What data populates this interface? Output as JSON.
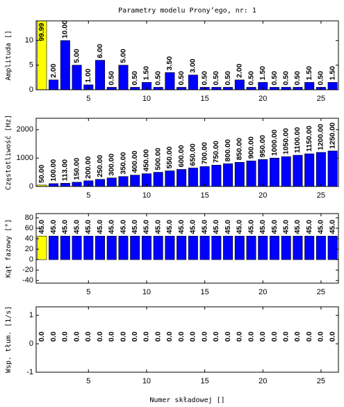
{
  "chart_data": [
    {
      "type": "bar",
      "title": "Parametry modelu Prony’ego, nr: 1",
      "ylabel": "Amplituda []",
      "x": [
        1,
        2,
        3,
        4,
        5,
        6,
        7,
        8,
        9,
        10,
        11,
        12,
        13,
        14,
        15,
        16,
        17,
        18,
        19,
        20,
        21,
        22,
        23,
        24,
        25,
        26
      ],
      "values": [
        99.99,
        2,
        10,
        5,
        1,
        6,
        0.5,
        5,
        0.5,
        1.5,
        0.5,
        3.5,
        0.5,
        3,
        0.5,
        0.5,
        0.5,
        2,
        0.5,
        1.5,
        0.5,
        0.5,
        0.5,
        1.5,
        0.5,
        1.5
      ],
      "value_labels": [
        "99.99",
        "2.00",
        "10.00",
        "5.00",
        "1.00",
        "6.00",
        "0.50",
        "5.00",
        "0.50",
        "1.50",
        "0.50",
        "3.50",
        "0.50",
        "3.00",
        "0.50",
        "0.50",
        "0.50",
        "2.00",
        "0.50",
        "1.50",
        "0.50",
        "0.50",
        "0.50",
        "1.50",
        "0.50",
        "1.50"
      ],
      "colors": [
        "#ffff00",
        "#0000ff",
        "#0000ff",
        "#0000ff",
        "#0000ff",
        "#0000ff",
        "#0000ff",
        "#0000ff",
        "#0000ff",
        "#0000ff",
        "#0000ff",
        "#0000ff",
        "#0000ff",
        "#0000ff",
        "#0000ff",
        "#0000ff",
        "#0000ff",
        "#0000ff",
        "#0000ff",
        "#0000ff",
        "#0000ff",
        "#0000ff",
        "#0000ff",
        "#0000ff",
        "#0000ff",
        "#0000ff"
      ],
      "xlim": [
        0.5,
        26.5
      ],
      "xticks": [
        5,
        10,
        15,
        20,
        25
      ],
      "ylim": [
        0,
        14
      ],
      "yticks": [
        0,
        5,
        10
      ]
    },
    {
      "type": "bar",
      "ylabel": "Częstotliwość [Hz]",
      "x": [
        1,
        2,
        3,
        4,
        5,
        6,
        7,
        8,
        9,
        10,
        11,
        12,
        13,
        14,
        15,
        16,
        17,
        18,
        19,
        20,
        21,
        22,
        23,
        24,
        25,
        26
      ],
      "values": [
        50,
        100,
        113,
        150,
        200,
        250,
        300,
        350,
        400,
        450,
        500,
        550,
        600,
        650,
        700,
        750,
        800,
        850,
        900,
        950,
        1000,
        1050,
        1100,
        1150,
        1200,
        1250
      ],
      "value_labels": [
        "50.00",
        "100.00",
        "113.00",
        "150.00",
        "200.00",
        "250.00",
        "300.00",
        "350.00",
        "400.00",
        "450.00",
        "500.00",
        "550.00",
        "600.00",
        "650.00",
        "700.00",
        "750.00",
        "800.00",
        "850.00",
        "900.00",
        "950.00",
        "1000.00",
        "1050.00",
        "1100.00",
        "1150.00",
        "1200.00",
        "1250.00"
      ],
      "colors": [
        "#ffff00",
        "#0000ff",
        "#0000ff",
        "#0000ff",
        "#0000ff",
        "#0000ff",
        "#0000ff",
        "#0000ff",
        "#0000ff",
        "#0000ff",
        "#0000ff",
        "#0000ff",
        "#0000ff",
        "#0000ff",
        "#0000ff",
        "#0000ff",
        "#0000ff",
        "#0000ff",
        "#0000ff",
        "#0000ff",
        "#0000ff",
        "#0000ff",
        "#0000ff",
        "#0000ff",
        "#0000ff",
        "#0000ff"
      ],
      "xlim": [
        0.5,
        26.5
      ],
      "xticks": [
        5,
        10,
        15,
        20,
        25
      ],
      "ylim": [
        0,
        2400
      ],
      "yticks": [
        0,
        1000,
        2000
      ]
    },
    {
      "type": "bar",
      "ylabel": "Kąt fazowy [°]",
      "x": [
        1,
        2,
        3,
        4,
        5,
        6,
        7,
        8,
        9,
        10,
        11,
        12,
        13,
        14,
        15,
        16,
        17,
        18,
        19,
        20,
        21,
        22,
        23,
        24,
        25,
        26
      ],
      "values": [
        45,
        45,
        45,
        45,
        45,
        45,
        45,
        45,
        45,
        45,
        45,
        45,
        45,
        45,
        45,
        45,
        45,
        45,
        45,
        45,
        45,
        45,
        45,
        45,
        45,
        45
      ],
      "value_labels": [
        "45.0",
        "45.0",
        "45.0",
        "45.0",
        "45.0",
        "45.0",
        "45.0",
        "45.0",
        "45.0",
        "45.0",
        "45.0",
        "45.0",
        "45.0",
        "45.0",
        "45.0",
        "45.0",
        "45.0",
        "45.0",
        "45.0",
        "45.0",
        "45.0",
        "45.0",
        "45.0",
        "45.0",
        "45.0",
        "45.0"
      ],
      "colors": [
        "#ffff00",
        "#0000ff",
        "#0000ff",
        "#0000ff",
        "#0000ff",
        "#0000ff",
        "#0000ff",
        "#0000ff",
        "#0000ff",
        "#0000ff",
        "#0000ff",
        "#0000ff",
        "#0000ff",
        "#0000ff",
        "#0000ff",
        "#0000ff",
        "#0000ff",
        "#0000ff",
        "#0000ff",
        "#0000ff",
        "#0000ff",
        "#0000ff",
        "#0000ff",
        "#0000ff",
        "#0000ff",
        "#0000ff"
      ],
      "xlim": [
        0.5,
        26.5
      ],
      "xticks": [
        5,
        10,
        15,
        20,
        25
      ],
      "ylim": [
        -45,
        88
      ],
      "yticks": [
        -40,
        -20,
        0,
        20,
        40,
        60,
        80
      ]
    },
    {
      "type": "bar",
      "ylabel": "Wsp. tłum. [1/s]",
      "xlabel": "Numer składowej []",
      "x": [
        1,
        2,
        3,
        4,
        5,
        6,
        7,
        8,
        9,
        10,
        11,
        12,
        13,
        14,
        15,
        16,
        17,
        18,
        19,
        20,
        21,
        22,
        23,
        24,
        25,
        26
      ],
      "values": [
        0,
        0,
        0,
        0,
        0,
        0,
        0,
        0,
        0,
        0,
        0,
        0,
        0,
        0,
        0,
        0,
        0,
        0,
        0,
        0,
        0,
        0,
        0,
        0,
        0,
        0
      ],
      "value_labels": [
        "0.0",
        "0.0",
        "0.0",
        "0.0",
        "0.0",
        "0.0",
        "0.0",
        "0.0",
        "0.0",
        "0.0",
        "0.0",
        "0.0",
        "0.0",
        "0.0",
        "0.0",
        "0.0",
        "0.0",
        "0.0",
        "0.0",
        "0.0",
        "0.0",
        "0.0",
        "0.0",
        "0.0",
        "0.0",
        "0.0"
      ],
      "colors": [
        "#ffff00",
        "#0000ff",
        "#0000ff",
        "#0000ff",
        "#0000ff",
        "#0000ff",
        "#0000ff",
        "#0000ff",
        "#0000ff",
        "#0000ff",
        "#0000ff",
        "#0000ff",
        "#0000ff",
        "#0000ff",
        "#0000ff",
        "#0000ff",
        "#0000ff",
        "#0000ff",
        "#0000ff",
        "#0000ff",
        "#0000ff",
        "#0000ff",
        "#0000ff",
        "#0000ff",
        "#0000ff",
        "#0000ff"
      ],
      "xlim": [
        0.5,
        26.5
      ],
      "xticks": [
        5,
        10,
        15,
        20,
        25
      ],
      "ylim": [
        -1,
        1.3
      ],
      "yticks": [
        -1,
        0,
        1
      ]
    }
  ]
}
